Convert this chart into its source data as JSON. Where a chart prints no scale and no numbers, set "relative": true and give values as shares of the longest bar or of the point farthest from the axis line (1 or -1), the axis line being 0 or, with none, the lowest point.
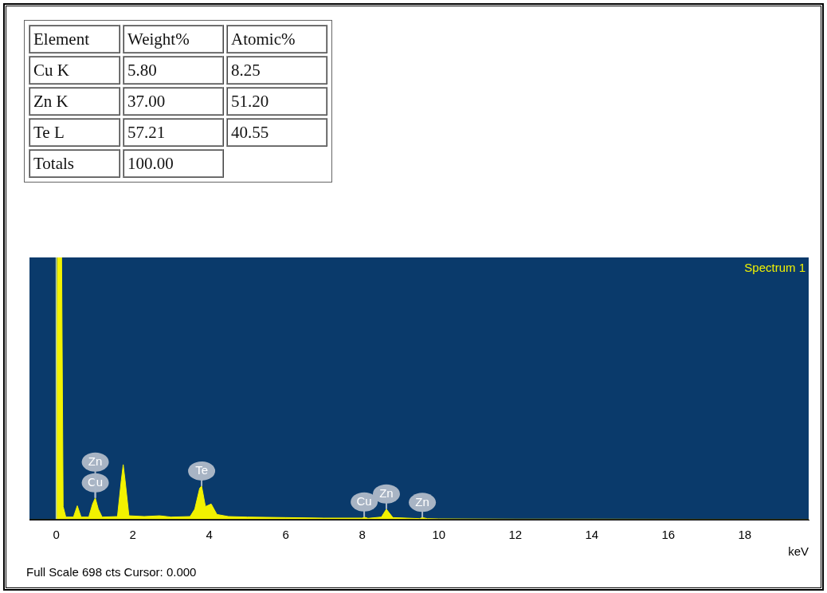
{
  "chart_data": [
    {
      "type": "other",
      "annotations": [
        "Element",
        "Weight%",
        "Atomic%",
        "Cu K",
        "5.80",
        "8.25",
        "Zn K",
        "37.00",
        "51.20",
        "Te L",
        "57.21",
        "40.55",
        "Totals",
        "100.00"
      ]
    },
    {
      "type": "area",
      "relative": true,
      "xlabel": "keV",
      "xlim": [
        -0.7,
        19.67
      ],
      "xticks": [
        0,
        2,
        4,
        6,
        8,
        10,
        12,
        14,
        16,
        18
      ],
      "series": [
        {
          "name": "Spectrum 1",
          "color": "#f2f200",
          "x": [
            -0.7,
            0.0,
            0.03,
            0.14,
            0.18,
            0.25,
            0.45,
            0.55,
            0.65,
            0.85,
            0.95,
            1.02,
            1.1,
            1.2,
            1.6,
            1.7,
            1.75,
            1.8,
            1.9,
            2.3,
            2.7,
            3.0,
            3.5,
            3.62,
            3.75,
            3.8,
            3.9,
            4.05,
            4.2,
            4.5,
            5,
            6,
            7,
            8,
            8.05,
            8.15,
            8.5,
            8.63,
            8.8,
            9.5,
            9.57,
            9.7,
            10,
            12,
            14,
            19.67
          ],
          "values": [
            0,
            0,
            1,
            1,
            0.05,
            0.01,
            0.01,
            0.053,
            0.01,
            0.01,
            0.06,
            0.083,
            0.04,
            0.01,
            0.012,
            0.15,
            0.21,
            0.15,
            0.015,
            0.012,
            0.015,
            0.01,
            0.012,
            0.04,
            0.12,
            0.128,
            0.05,
            0.06,
            0.02,
            0.012,
            0.01,
            0.008,
            0.006,
            0.006,
            0.01,
            0.005,
            0.01,
            0.04,
            0.008,
            0.004,
            0.008,
            0.004,
            0.003,
            0.002,
            0.002,
            0.001
          ]
        }
      ],
      "ref_lines": [
        {
          "axis": "x",
          "value": 0,
          "color": "#b8d0a0"
        }
      ],
      "annotations": [
        {
          "text": "Cu",
          "x": 1.02,
          "y": 0.083
        },
        {
          "text": "Zn",
          "x": 1.02,
          "y": 0.083
        },
        {
          "text": "Te",
          "x": 3.8,
          "y": 0.128
        },
        {
          "text": "Cu",
          "x": 8.05,
          "y": 0.01
        },
        {
          "text": "Zn",
          "x": 8.63,
          "y": 0.04
        },
        {
          "text": "Zn",
          "x": 9.57,
          "y": 0.008
        },
        "Full Scale 698 cts Cursor: 0.000"
      ]
    }
  ]
}
